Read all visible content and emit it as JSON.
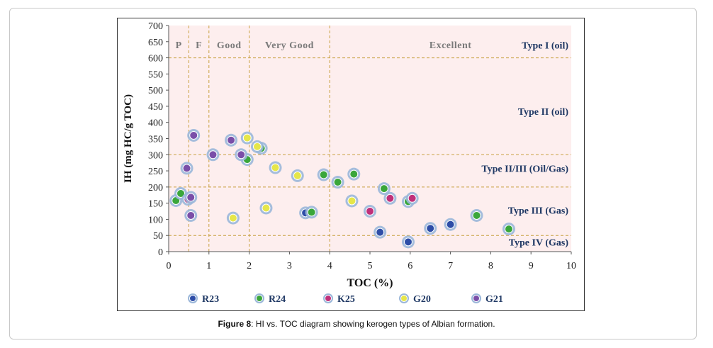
{
  "caption": {
    "label": "Figure 8",
    "text": ": HI vs. TOC diagram showing kerogen types of Albian formation."
  },
  "chart_data": {
    "type": "scatter",
    "xlabel": "TOC (%)",
    "ylabel": "IH (mg HC/g TOC)",
    "xlim": [
      0,
      10
    ],
    "ylim": [
      0,
      700
    ],
    "xticks": [
      0,
      1,
      2,
      3,
      4,
      5,
      6,
      7,
      8,
      9,
      10
    ],
    "yticks": [
      0,
      50,
      100,
      150,
      200,
      250,
      300,
      350,
      400,
      450,
      500,
      550,
      600,
      650,
      700
    ],
    "toc_zones": [
      {
        "label": "P",
        "from": 0,
        "to": 0.5
      },
      {
        "label": "F",
        "from": 0.5,
        "to": 1
      },
      {
        "label": "Good",
        "from": 1,
        "to": 2
      },
      {
        "label": "Very Good",
        "from": 2,
        "to": 4
      },
      {
        "label": "Excellent",
        "from": 4,
        "to": 10
      }
    ],
    "type_lines": [
      50,
      200,
      300,
      600
    ],
    "type_labels": [
      {
        "text": "Type I (oil)",
        "y": 640
      },
      {
        "text": "Type II (oil)",
        "y": 435
      },
      {
        "text": "Type II/III (Oil/Gas)",
        "y": 258
      },
      {
        "text": "Type III (Gas)",
        "y": 128
      },
      {
        "text": "Type IV (Gas)",
        "y": 30
      }
    ],
    "colors": {
      "background": "#fdeeee",
      "grid": "#c8a040",
      "halo": "#9bb7d9",
      "text": "#1f3864"
    },
    "series": [
      {
        "name": "R23",
        "color": "#2e4da7",
        "points": [
          [
            3.4,
            120
          ],
          [
            5.25,
            60
          ],
          [
            5.95,
            30
          ],
          [
            6.5,
            72
          ],
          [
            7.0,
            84
          ]
        ]
      },
      {
        "name": "R24",
        "color": "#3aa63a",
        "points": [
          [
            0.18,
            158
          ],
          [
            0.3,
            180
          ],
          [
            1.95,
            285
          ],
          [
            2.3,
            320
          ],
          [
            3.55,
            122
          ],
          [
            3.85,
            238
          ],
          [
            4.2,
            215
          ],
          [
            4.6,
            240
          ],
          [
            5.35,
            195
          ],
          [
            5.95,
            155
          ],
          [
            7.65,
            112
          ],
          [
            8.45,
            70
          ]
        ]
      },
      {
        "name": "K25",
        "color": "#c0307a",
        "points": [
          [
            0.48,
            162
          ],
          [
            5.0,
            125
          ],
          [
            5.5,
            165
          ],
          [
            6.05,
            165
          ]
        ]
      },
      {
        "name": "G20",
        "color": "#e6e64a",
        "points": [
          [
            1.6,
            104
          ],
          [
            1.95,
            352
          ],
          [
            2.2,
            325
          ],
          [
            2.42,
            135
          ],
          [
            2.65,
            260
          ],
          [
            3.2,
            235
          ],
          [
            4.55,
            157
          ]
        ]
      },
      {
        "name": "G21",
        "color": "#7a4ea8",
        "points": [
          [
            0.45,
            258
          ],
          [
            0.55,
            112
          ],
          [
            0.55,
            168
          ],
          [
            0.62,
            360
          ],
          [
            1.1,
            300
          ],
          [
            1.55,
            345
          ],
          [
            1.8,
            300
          ]
        ]
      }
    ]
  }
}
